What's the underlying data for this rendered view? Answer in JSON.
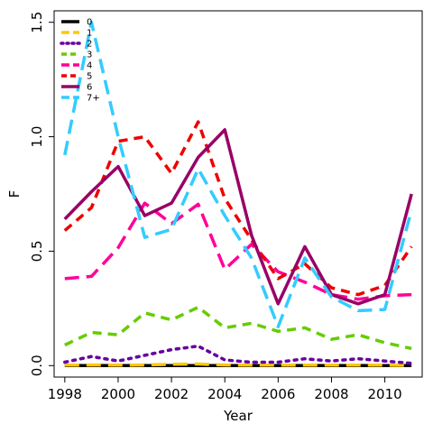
{
  "chart_data": {
    "type": "line",
    "xlabel": "Year",
    "ylabel": "F",
    "xlim": [
      1997.6,
      2011.4
    ],
    "ylim": [
      -0.05,
      1.55
    ],
    "x_ticks": [
      1998,
      2000,
      2002,
      2004,
      2006,
      2008,
      2010
    ],
    "y_ticks": [
      0.0,
      0.5,
      1.0,
      1.5
    ],
    "x_tick_labels": [
      "1998",
      "2000",
      "2002",
      "2004",
      "2006",
      "2008",
      "2010"
    ],
    "y_tick_labels": [
      "0.0",
      "0.5",
      "1.0",
      "1.5"
    ],
    "grid": false,
    "legend_position": "top-left",
    "x": [
      1998,
      1999,
      2000,
      2001,
      2002,
      2003,
      2004,
      2005,
      2006,
      2007,
      2008,
      2009,
      2010,
      2011
    ],
    "series": [
      {
        "name": "0",
        "color": "#000000",
        "dash": "solid",
        "values": [
          0.0,
          0.0,
          0.0,
          0.0,
          0.0,
          0.0,
          0.0,
          0.0,
          0.0,
          0.0,
          0.0,
          0.0,
          0.0,
          0.0
        ]
      },
      {
        "name": "1",
        "color": "#FFC800",
        "dash": "longdash",
        "values": [
          0.002,
          0.003,
          0.002,
          0.003,
          0.006,
          0.007,
          0.003,
          0.002,
          0.002,
          0.002,
          0.002,
          0.002,
          0.002,
          0.001
        ]
      },
      {
        "name": "2",
        "color": "#6600A0",
        "dash": "dotted",
        "values": [
          0.015,
          0.04,
          0.02,
          0.045,
          0.07,
          0.085,
          0.025,
          0.015,
          0.015,
          0.03,
          0.02,
          0.03,
          0.02,
          0.01
        ]
      },
      {
        "name": "3",
        "color": "#66CC00",
        "dash": "dashed",
        "values": [
          0.09,
          0.145,
          0.135,
          0.23,
          0.2,
          0.255,
          0.165,
          0.185,
          0.15,
          0.165,
          0.115,
          0.135,
          0.1,
          0.075
        ]
      },
      {
        "name": "4",
        "color": "#FF0099",
        "dash": "longdash",
        "values": [
          0.38,
          0.39,
          0.515,
          0.71,
          0.62,
          0.705,
          0.42,
          0.53,
          0.41,
          0.365,
          0.31,
          0.29,
          0.305,
          0.31
        ]
      },
      {
        "name": "5",
        "color": "#EE0000",
        "dash": "dashed",
        "values": [
          0.59,
          0.69,
          0.98,
          1.0,
          0.84,
          1.065,
          0.73,
          0.55,
          0.38,
          0.445,
          0.34,
          0.31,
          0.35,
          0.52
        ]
      },
      {
        "name": "6",
        "color": "#990066",
        "dash": "solid",
        "values": [
          0.64,
          0.76,
          0.87,
          0.655,
          0.71,
          0.91,
          1.03,
          0.57,
          0.27,
          0.52,
          0.31,
          0.27,
          0.31,
          0.75
        ]
      },
      {
        "name": "7+",
        "color": "#33CCFF",
        "dash": "longdash",
        "values": [
          0.92,
          1.5,
          1.0,
          0.56,
          0.595,
          0.86,
          0.655,
          0.47,
          0.17,
          0.47,
          0.3,
          0.24,
          0.245,
          0.68
        ]
      }
    ]
  }
}
